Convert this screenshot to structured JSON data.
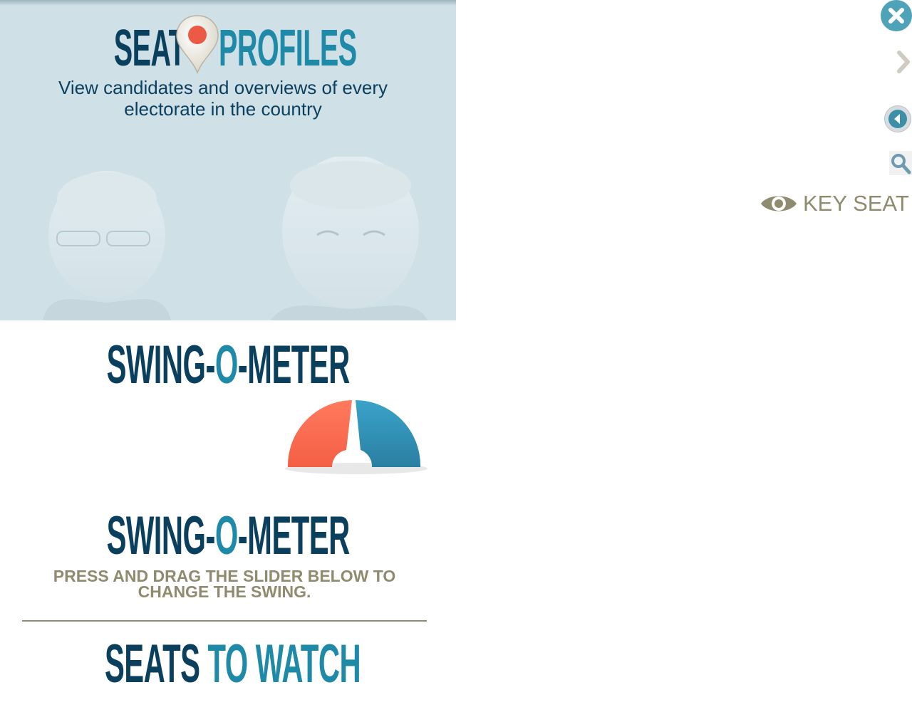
{
  "seat_profiles": {
    "title_left": "SEAT",
    "title_right": "PROFILES",
    "subtitle": "View candidates and overviews of every electorate in the country"
  },
  "swing_meter": {
    "title_part1": "SWING-",
    "title_part2": "O",
    "title_part3": "-METER",
    "instruction": "PRESS AND DRAG THE SLIDER BELOW TO CHANGE THE SWING."
  },
  "seats_to_watch": {
    "title_part1": "SEATS",
    "title_part2": "TO WATCH"
  },
  "controls": {
    "key_seat_label": "KEY SEAT"
  },
  "colors": {
    "navy": "#0b3f5e",
    "teal": "#1f8aa8",
    "olive": "#8f8b6e",
    "labor_red": "#ff6a50",
    "coalition_blue": "#2f92b6",
    "panel_bg": "#cfe0e7"
  },
  "icons": [
    "map-pin-icon",
    "close-icon",
    "chevron-right-icon",
    "back-arrow-icon",
    "search-icon",
    "eye-icon"
  ]
}
